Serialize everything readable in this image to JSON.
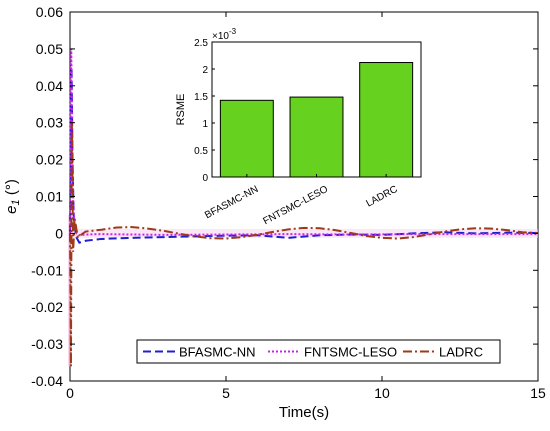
{
  "chart_data": [
    {
      "type": "line",
      "xlabel": "Time(s)",
      "ylabel_main": "e",
      "ylabel_sub": "1",
      "ylabel_unit": " (°)",
      "xlim": [
        0,
        15
      ],
      "ylim": [
        -0.04,
        0.06
      ],
      "xticks": [
        0,
        5,
        10,
        15
      ],
      "yticks": [
        -0.04,
        -0.03,
        -0.02,
        -0.01,
        0,
        0.01,
        0.02,
        0.03,
        0.04,
        0.05,
        0.06
      ],
      "xtick_labels": [
        "0",
        "5",
        "10",
        "15"
      ],
      "ytick_labels": [
        "-0.04",
        "-0.03",
        "-0.02",
        "-0.01",
        "0",
        "0.01",
        "0.02",
        "0.03",
        "0.04",
        "0.05",
        "0.06"
      ],
      "legend_position": "bottom-right",
      "grid": false,
      "series": [
        {
          "name": "BFASMC-NN",
          "color": "#1f1fd0",
          "style": "dashed",
          "x": [
            0,
            0.02,
            0.05,
            0.08,
            0.12,
            0.2,
            0.3,
            0.5,
            1,
            2,
            3,
            4,
            5,
            6,
            7,
            8,
            9,
            10,
            11,
            12,
            13,
            14,
            15
          ],
          "y": [
            0,
            0.02,
            0.045,
            0.02,
            0.004,
            -0.001,
            -0.0025,
            -0.002,
            -0.0015,
            -0.0012,
            -0.001,
            -0.0008,
            -0.0006,
            -0.0005,
            -0.0012,
            -0.0005,
            -0.0003,
            -0.0004,
            0,
            0.0003,
            0,
            0.0002,
            0.0001
          ]
        },
        {
          "name": "FNTSMC-LESO",
          "color": "#cc22ee",
          "style": "dotted",
          "x": [
            0,
            0.02,
            0.04,
            0.07,
            0.1,
            0.14,
            0.2,
            0.3,
            0.5,
            1,
            3,
            5,
            7,
            9,
            11,
            13,
            15
          ],
          "y": [
            0,
            0.035,
            0.05,
            0.03,
            0.01,
            0.002,
            0,
            -0.0005,
            -0.0003,
            -0.0002,
            -0.0004,
            -0.0003,
            -0.0002,
            -0.0003,
            -0.0002,
            -0.0002,
            -0.0002
          ]
        },
        {
          "name": "LADRC",
          "color": "#a0381a",
          "style": "dashdot",
          "x": [
            0,
            0.03,
            0.06,
            0.1,
            0.15,
            0.25,
            0.5,
            1,
            1.5,
            2,
            2.5,
            3,
            3.5,
            4,
            4.5,
            5,
            5.5,
            6,
            6.5,
            7,
            7.5,
            8,
            8.5,
            9,
            9.5,
            10,
            10.5,
            11,
            11.5,
            12,
            12.5,
            13,
            13.5,
            14,
            14.5,
            15
          ],
          "y": [
            0,
            -0.036,
            0.03,
            -0.005,
            0.004,
            -0.001,
            0.0005,
            0.001,
            0.0016,
            0.0017,
            0.0013,
            0.0007,
            -0.0001,
            -0.0008,
            -0.0013,
            -0.0014,
            -0.001,
            -0.0004,
            0.0004,
            0.0011,
            0.0015,
            0.0014,
            0.0009,
            0.0001,
            -0.0007,
            -0.0012,
            -0.0014,
            -0.001,
            -0.0003,
            0.0005,
            0.0011,
            0.0014,
            0.0013,
            0.0009,
            0.0003,
            0.0001
          ]
        }
      ]
    },
    {
      "type": "bar",
      "categories": [
        "BFASMC-NN",
        "FNTSMC-LESO",
        "LADRC"
      ],
      "values": [
        1.42,
        1.48,
        2.12
      ],
      "ylabel": "RSME",
      "ylim": [
        0,
        2.5
      ],
      "yticks": [
        0,
        0.5,
        1,
        1.5,
        2,
        2.5
      ],
      "ytick_labels": [
        "0",
        "0.5",
        "1",
        "1.5",
        "2",
        "2.5"
      ],
      "scale_label": "×10",
      "scale_exponent": "-3",
      "bar_color": "#66d11f"
    }
  ]
}
